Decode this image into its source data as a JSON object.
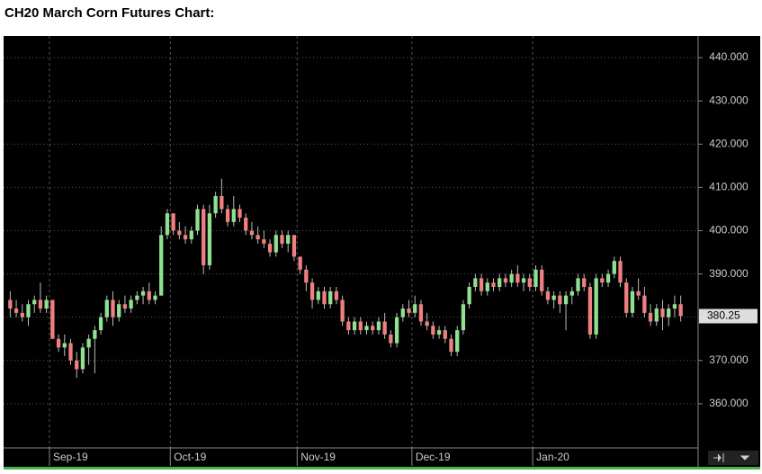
{
  "chart_data": {
    "type": "candlestick",
    "title": "CH20 March Corn Futures Chart:",
    "open": [
      384,
      382,
      381,
      380,
      383,
      384,
      382,
      384,
      375,
      373,
      374,
      370,
      368,
      373,
      375,
      377,
      380,
      384,
      380,
      383,
      382,
      384,
      385,
      386,
      384,
      385,
      399,
      404,
      400,
      399,
      398,
      400,
      405,
      392,
      404,
      408,
      405,
      402,
      405,
      403,
      400,
      399,
      398,
      397,
      395,
      399,
      397,
      399,
      394,
      391,
      388,
      384,
      386,
      383,
      386,
      384,
      379,
      377,
      379,
      377,
      378,
      377,
      379,
      376,
      374,
      380,
      382,
      381,
      383,
      379,
      378,
      376,
      377,
      375,
      372,
      377,
      383,
      387,
      389,
      386,
      388,
      387,
      389,
      388,
      390,
      388,
      389,
      387,
      391,
      386,
      384,
      385,
      383,
      385,
      386,
      389,
      387,
      376,
      389,
      388,
      390,
      393,
      388,
      381,
      386,
      385,
      381,
      379,
      382,
      380,
      382,
      383
    ],
    "high": [
      386,
      384,
      383,
      384,
      385,
      388,
      385,
      384,
      376,
      376,
      375,
      372,
      374,
      376,
      378,
      381,
      385,
      386,
      384,
      385,
      385,
      386,
      387,
      388,
      386,
      401,
      405,
      404,
      402,
      401,
      401,
      406,
      406,
      406,
      409,
      412,
      406,
      408,
      406,
      404,
      402,
      401,
      400,
      398,
      400,
      400,
      400,
      399,
      394,
      392,
      389,
      387,
      387,
      387,
      387,
      385,
      380,
      380,
      380,
      379,
      379,
      380,
      381,
      377,
      381,
      383,
      384,
      385,
      384,
      381,
      379,
      378,
      378,
      376,
      378,
      384,
      388,
      390,
      390,
      389,
      389,
      390,
      390,
      391,
      392,
      390,
      390,
      392,
      392,
      387,
      386,
      386,
      386,
      387,
      390,
      390,
      388,
      390,
      390,
      391,
      394,
      394,
      389,
      387,
      389,
      387,
      383,
      383,
      384,
      383,
      385,
      385
    ],
    "low": [
      380,
      380,
      379,
      378,
      381,
      381,
      381,
      375,
      372,
      371,
      369,
      366,
      367,
      369,
      367,
      376,
      379,
      378,
      379,
      381,
      381,
      383,
      383,
      383,
      383,
      385,
      398,
      399,
      398,
      397,
      397,
      399,
      390,
      391,
      403,
      404,
      401,
      401,
      402,
      399,
      398,
      397,
      396,
      394,
      394,
      396,
      395,
      393,
      390,
      386,
      382,
      383,
      382,
      382,
      383,
      378,
      376,
      376,
      376,
      376,
      376,
      376,
      375,
      373,
      373,
      379,
      380,
      380,
      378,
      377,
      375,
      375,
      374,
      371,
      371,
      376,
      382,
      386,
      385,
      385,
      386,
      386,
      387,
      387,
      387,
      386,
      386,
      386,
      385,
      383,
      382,
      381,
      377,
      383,
      385,
      386,
      375,
      375,
      387,
      387,
      389,
      387,
      380,
      380,
      384,
      380,
      378,
      378,
      377,
      378,
      380,
      379
    ],
    "close": [
      382,
      381,
      380,
      383,
      384,
      382,
      384,
      375,
      373,
      374,
      370,
      368,
      373,
      375,
      377,
      380,
      384,
      380,
      383,
      382,
      384,
      385,
      386,
      384,
      385,
      399,
      404,
      400,
      399,
      398,
      400,
      405,
      392,
      404,
      408,
      405,
      402,
      405,
      403,
      400,
      399,
      398,
      397,
      395,
      399,
      397,
      399,
      394,
      391,
      388,
      384,
      386,
      383,
      386,
      384,
      379,
      377,
      379,
      377,
      378,
      377,
      379,
      376,
      374,
      380,
      382,
      381,
      383,
      379,
      378,
      376,
      377,
      375,
      372,
      377,
      383,
      387,
      389,
      386,
      388,
      387,
      389,
      388,
      390,
      388,
      389,
      387,
      391,
      386,
      384,
      385,
      383,
      385,
      386,
      389,
      387,
      376,
      389,
      388,
      390,
      393,
      388,
      381,
      386,
      385,
      381,
      379,
      382,
      380,
      382,
      383,
      380.25
    ],
    "up_color": "#8fe08f",
    "down_color": "#f08080",
    "ylim": [
      350,
      445
    ],
    "yticks": [
      {
        "value": 360,
        "label": "360.000"
      },
      {
        "value": 370,
        "label": "370.000"
      },
      {
        "value": 380,
        "label": "380.000"
      },
      {
        "value": 390,
        "label": "390.000"
      },
      {
        "value": 400,
        "label": "400.000"
      },
      {
        "value": 410,
        "label": "410.000"
      },
      {
        "value": 420,
        "label": "420.000"
      },
      {
        "value": 430,
        "label": "430.000"
      },
      {
        "value": 440,
        "label": "440.000"
      }
    ],
    "xticks": [
      {
        "value": 7,
        "label": "Sep-19"
      },
      {
        "value": 27,
        "label": "Oct-19"
      },
      {
        "value": 48,
        "label": "Nov-19"
      },
      {
        "value": 67,
        "label": "Dec-19"
      },
      {
        "value": 87,
        "label": "Jan-20"
      }
    ],
    "last_price": 380.25,
    "grid": true
  }
}
